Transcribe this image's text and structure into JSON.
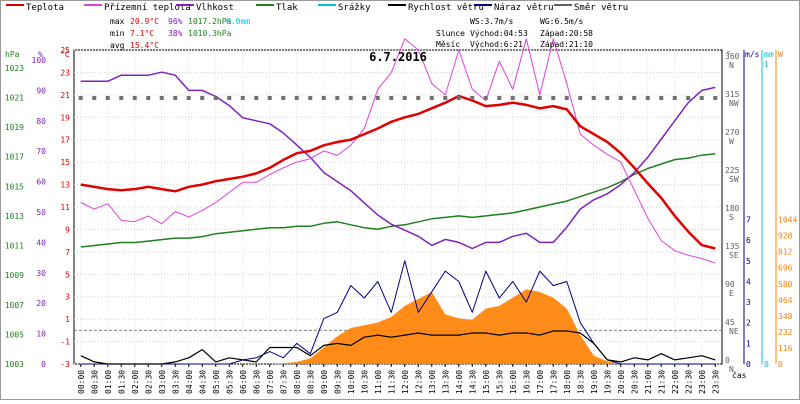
{
  "chart_data": {
    "type": "line",
    "title": "6.7.2016",
    "x_axis_label": "čas",
    "x_ticks": [
      "00:00",
      "00:30",
      "01:00",
      "01:30",
      "02:00",
      "02:30",
      "03:00",
      "03:30",
      "04:00",
      "04:30",
      "05:00",
      "05:30",
      "06:00",
      "06:30",
      "07:00",
      "07:30",
      "08:00",
      "08:30",
      "09:00",
      "09:30",
      "10:00",
      "10:30",
      "11:00",
      "11:30",
      "12:00",
      "12:30",
      "13:00",
      "13:30",
      "14:00",
      "14:30",
      "15:00",
      "15:30",
      "16:00",
      "16:30",
      "17:00",
      "17:30",
      "18:00",
      "18:30",
      "19:00",
      "19:30",
      "20:00",
      "20:30",
      "21:00",
      "21:30",
      "22:00",
      "22:30",
      "23:00",
      "23:30"
    ],
    "legend": [
      {
        "name": "Teplota",
        "color": "#e00000"
      },
      {
        "name": "Přízemní teplota",
        "color": "#e040e0"
      },
      {
        "name": "Vlhkost",
        "color": "#8020c0"
      },
      {
        "name": "Tlak",
        "color": "#208020"
      },
      {
        "name": "Srážky",
        "color": "#00c0e0"
      },
      {
        "name": "Rychlost větru",
        "color": "#000000"
      },
      {
        "name": "Náraz větru",
        "color": "#000080"
      },
      {
        "name": "Směr větru",
        "color": "#606060"
      }
    ],
    "stats": {
      "max": {
        "label": "max",
        "temp": "20.9°C",
        "humidity": "96%",
        "pressure": "1017.2hPa",
        "rain": "0.0mm"
      },
      "min": {
        "label": "min",
        "temp": "7.1°C",
        "humidity": "38%",
        "pressure": "1010.3hPa"
      },
      "avg": {
        "label": "avg",
        "temp": "15.4°C"
      }
    },
    "info": {
      "ws": "WS:3.7m/s",
      "wg": "WG:6.5m/s",
      "sun_label": "Slunce",
      "sunrise": "Východ:04:53",
      "sunset": "Západ:20:58",
      "moon_label": "Měsíc",
      "moonrise": "Východ:6:21",
      "moonset": "Západ:21:10"
    },
    "axes": {
      "pressure": {
        "unit": "hPa",
        "ticks": [
          "1003",
          "1005",
          "1007",
          "1009",
          "1011",
          "1013",
          "1015",
          "1017",
          "1019",
          "1021",
          "1023"
        ]
      },
      "humidity": {
        "unit": "%",
        "ticks": [
          "0",
          "10",
          "20",
          "30",
          "40",
          "50",
          "60",
          "70",
          "80",
          "90",
          "100"
        ]
      },
      "temperature": {
        "unit": "°C",
        "ticks": [
          "-3",
          "-1",
          "1",
          "3",
          "5",
          "7",
          "9",
          "11",
          "13",
          "15",
          "17",
          "19",
          "21",
          "23",
          "25"
        ]
      },
      "direction": {
        "unit": "°",
        "ticks": [
          "0",
          "45",
          "90",
          "135",
          "180",
          "225",
          "270",
          "315",
          "360"
        ],
        "labels": [
          "N",
          "NE",
          "E",
          "SE",
          "S",
          "SW",
          "W",
          "NW",
          "N"
        ]
      },
      "wind": {
        "unit": "m/s",
        "ticks": [
          "0",
          "1",
          "2",
          "3",
          "4",
          "5",
          "6",
          "7"
        ]
      },
      "rain": {
        "unit": "mm",
        "ticks": [
          "0",
          "1"
        ]
      },
      "solar": {
        "unit": "W",
        "ticks": [
          "0",
          "116",
          "232",
          "348",
          "464",
          "580",
          "696",
          "812",
          "928",
          "1044"
        ]
      }
    },
    "series": {
      "temperature_c": [
        13.0,
        12.8,
        12.6,
        12.5,
        12.6,
        12.8,
        12.6,
        12.4,
        12.8,
        13.0,
        13.3,
        13.5,
        13.7,
        14.0,
        14.5,
        15.2,
        15.8,
        16.0,
        16.5,
        16.8,
        17.0,
        17.5,
        18.0,
        18.6,
        19.0,
        19.3,
        19.8,
        20.3,
        20.9,
        20.5,
        20.0,
        20.1,
        20.3,
        20.1,
        19.8,
        20.0,
        19.7,
        18.2,
        17.5,
        16.8,
        15.8,
        14.5,
        13.1,
        11.8,
        10.2,
        8.8,
        7.6,
        7.3
      ],
      "ground_temp_c": [
        11.4,
        10.8,
        11.3,
        9.8,
        9.7,
        10.2,
        9.5,
        10.6,
        10.1,
        10.7,
        11.4,
        12.3,
        13.2,
        13.2,
        13.9,
        14.5,
        15.0,
        15.3,
        16.0,
        15.6,
        16.5,
        18.0,
        21.5,
        23.0,
        26.0,
        25.0,
        22.0,
        21.0,
        25.0,
        21.5,
        20.5,
        24.0,
        21.5,
        26.0,
        21.0,
        26.0,
        22.0,
        17.5,
        16.5,
        15.7,
        15.0,
        12.5,
        10.0,
        8.0,
        7.1,
        6.7,
        6.4,
        6.0
      ],
      "humidity_pct": [
        93,
        93,
        93,
        95,
        95,
        95,
        96,
        95,
        90,
        90,
        88,
        85,
        81,
        80,
        79,
        76,
        72,
        68,
        63,
        60,
        57,
        53,
        49,
        46,
        44,
        42,
        39,
        41,
        40,
        38,
        40,
        40,
        42,
        43,
        40,
        40,
        45,
        51,
        54,
        56,
        59,
        63,
        68,
        74,
        80,
        86,
        90,
        91
      ],
      "pressure_hpa": [
        1010.9,
        1011.0,
        1011.1,
        1011.2,
        1011.2,
        1011.3,
        1011.4,
        1011.5,
        1011.5,
        1011.6,
        1011.8,
        1011.9,
        1012.0,
        1012.1,
        1012.2,
        1012.2,
        1012.3,
        1012.3,
        1012.5,
        1012.6,
        1012.4,
        1012.2,
        1012.1,
        1012.3,
        1012.4,
        1012.6,
        1012.8,
        1012.9,
        1013.0,
        1012.9,
        1013.0,
        1013.1,
        1013.2,
        1013.4,
        1013.6,
        1013.8,
        1014.0,
        1014.3,
        1014.6,
        1014.9,
        1015.3,
        1015.8,
        1016.2,
        1016.5,
        1016.8,
        1016.9,
        1017.1,
        1017.2
      ],
      "wind_speed_ms": [
        0.4,
        0.1,
        0.0,
        0.0,
        0.0,
        0.0,
        0.0,
        0.1,
        0.3,
        0.7,
        0.1,
        0.3,
        0.2,
        0.1,
        0.8,
        0.8,
        0.8,
        0.4,
        0.9,
        1.0,
        0.9,
        1.3,
        1.4,
        1.3,
        1.4,
        1.5,
        1.4,
        1.4,
        1.4,
        1.5,
        1.5,
        1.4,
        1.5,
        1.5,
        1.4,
        1.6,
        1.6,
        1.5,
        1.0,
        0.2,
        0.1,
        0.3,
        0.2,
        0.5,
        0.2,
        0.3,
        0.4,
        0.2
      ],
      "wind_gust_ms": [
        0.0,
        0.0,
        0.0,
        0.0,
        0.0,
        0.0,
        0.0,
        0.0,
        0.0,
        0.0,
        0.0,
        0.0,
        0.2,
        0.3,
        0.6,
        0.3,
        1.0,
        0.5,
        2.2,
        2.5,
        3.8,
        3.2,
        4.0,
        2.5,
        5.0,
        2.5,
        3.5,
        4.5,
        4.0,
        2.5,
        4.5,
        3.2,
        4.0,
        3.0,
        4.5,
        3.8,
        4.0,
        2.0,
        1.0,
        0.2,
        0.0,
        0.0,
        0.0,
        0.0,
        0.0,
        0.0,
        0.0,
        0.0
      ],
      "wind_direction_deg": [
        315,
        315,
        315,
        315,
        315,
        315,
        315,
        315,
        315,
        315,
        315,
        315,
        315,
        315,
        315,
        315,
        315,
        315,
        315,
        315,
        315,
        315,
        315,
        315,
        315,
        315,
        315,
        315,
        315,
        315,
        315,
        315,
        315,
        315,
        315,
        315,
        315,
        315,
        315,
        315,
        315,
        315,
        315,
        315,
        315,
        315,
        315,
        315
      ],
      "solar_w": [
        0,
        0,
        0,
        0,
        0,
        0,
        0,
        0,
        0,
        0,
        0,
        0,
        0,
        0,
        0,
        5,
        15,
        40,
        120,
        200,
        260,
        280,
        300,
        340,
        420,
        470,
        520,
        360,
        330,
        320,
        400,
        420,
        480,
        540,
        520,
        480,
        400,
        210,
        60,
        20,
        0,
        0,
        0,
        0,
        0,
        0,
        0,
        0
      ]
    }
  }
}
